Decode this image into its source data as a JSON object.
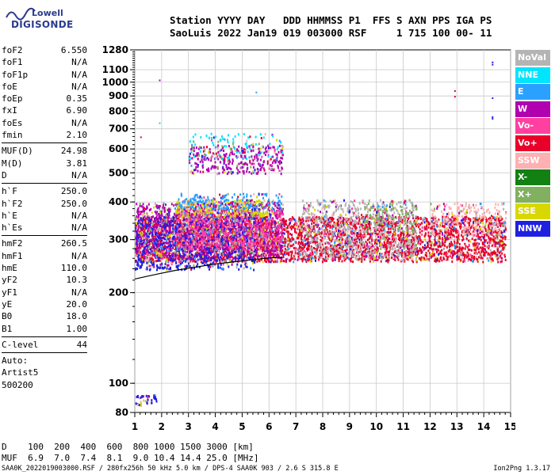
{
  "logo": {
    "org": "Lowell",
    "product": "DIGISONDE"
  },
  "header": {
    "line1": "Station YYYY DAY   DDD HHMMSS P1  FFS S AXN PPS IGA PS",
    "line2": "SaoLuis 2022 Jan19 019 003000 RSF     1 715 100 00- 11"
  },
  "params": {
    "group1": [
      {
        "label": "foF2",
        "value": "6.550"
      },
      {
        "label": "foF1",
        "value": "N/A"
      },
      {
        "label": "foF1p",
        "value": "N/A"
      },
      {
        "label": "foE",
        "value": "N/A"
      },
      {
        "label": "foEp",
        "value": "0.35"
      },
      {
        "label": "fxI",
        "value": "6.90"
      },
      {
        "label": "foEs",
        "value": "N/A"
      },
      {
        "label": "fmin",
        "value": "2.10"
      }
    ],
    "group2": [
      {
        "label": "MUF(D)",
        "value": "24.98"
      },
      {
        "label": "M(D)",
        "value": "3.81"
      },
      {
        "label": "D",
        "value": "N/A"
      }
    ],
    "group3": [
      {
        "label": "h`F",
        "value": "250.0"
      },
      {
        "label": "h`F2",
        "value": "250.0"
      },
      {
        "label": "h`E",
        "value": "N/A"
      },
      {
        "label": "h`Es",
        "value": "N/A"
      }
    ],
    "group4": [
      {
        "label": "hmF2",
        "value": "260.5"
      },
      {
        "label": "hmF1",
        "value": "N/A"
      },
      {
        "label": "hmE",
        "value": "110.0"
      },
      {
        "label": "yF2",
        "value": "10.3"
      },
      {
        "label": "yF1",
        "value": "N/A"
      },
      {
        "label": "yE",
        "value": "20.0"
      },
      {
        "label": "B0",
        "value": "18.0"
      },
      {
        "label": "B1",
        "value": "1.00"
      }
    ],
    "clevel": {
      "label": "C-level",
      "value": "44"
    },
    "auto": [
      "Auto:",
      "Artist5",
      "500200"
    ]
  },
  "legend": [
    {
      "label": "NoVal",
      "bg": "#b4b4b4",
      "fg": "#ffffff"
    },
    {
      "label": "NNE",
      "bg": "#00e5ff",
      "fg": "#ffffff"
    },
    {
      "label": "E",
      "bg": "#2aa0ff",
      "fg": "#ffffff"
    },
    {
      "label": "W",
      "bg": "#b000b0",
      "fg": "#ffffff"
    },
    {
      "label": "Vo-",
      "bg": "#ff40a0",
      "fg": "#ffffff"
    },
    {
      "label": "Vo+",
      "bg": "#e8002a",
      "fg": "#ffffff"
    },
    {
      "label": "SSW",
      "bg": "#ffb0b0",
      "fg": "#ffffff"
    },
    {
      "label": "X-",
      "bg": "#128012",
      "fg": "#ffffff"
    },
    {
      "label": "X+",
      "bg": "#80b060",
      "fg": "#ffffff"
    },
    {
      "label": "SSE",
      "bg": "#d8d800",
      "fg": "#ffffff"
    },
    {
      "label": "NNW",
      "bg": "#2020e0",
      "fg": "#ffffff"
    }
  ],
  "footer": {
    "d_row": "D    100  200  400  600  800 1000 1500 3000 [km]",
    "muf_row": "MUF  6.9  7.0  7.4  8.1  9.0 10.4 14.4 25.0 [MHz]",
    "file_info": "SAA0K_2022019003000.RSF / 280fx256h 50 kHz 5.0 km / DPS-4 SAA0K 903 / 2.6 S 315.8 E",
    "version": "Ion2Png 1.3.17"
  },
  "chart_data": {
    "type": "scatter",
    "title": "",
    "xlabel": "",
    "ylabel": "",
    "xlim": [
      1,
      15
    ],
    "ylim": [
      80,
      1280
    ],
    "y_scale": "log",
    "x_ticks": [
      "1",
      "2",
      "3",
      "4",
      "5",
      "6",
      "7",
      "8",
      "9",
      "10",
      "11",
      "12",
      "13",
      "14",
      "15"
    ],
    "y_ticks": [
      "80",
      "100",
      "200",
      "300",
      "400",
      "500",
      "600",
      "700",
      "800",
      "900",
      "1000",
      "1100",
      "1280"
    ],
    "grid": true,
    "legend_position": "right",
    "profile_curve": {
      "x": [
        1.0,
        1.5,
        2.0,
        2.5,
        3.0,
        3.5,
        4.0,
        4.5,
        5.0,
        5.5,
        6.0,
        6.5
      ],
      "y": [
        222,
        227,
        232,
        237,
        241,
        245,
        249,
        252,
        255,
        258,
        261,
        262
      ]
    },
    "echo_clusters": [
      {
        "name": "Vo+",
        "x_range": [
          1.0,
          14.8
        ],
        "y_range": [
          255,
          360
        ],
        "density": 0.9
      },
      {
        "name": "W",
        "x_range": [
          1.0,
          6.5
        ],
        "y_range": [
          260,
          400
        ],
        "density": 0.7
      },
      {
        "name": "NNW",
        "x_range": [
          1.0,
          5.5
        ],
        "y_range": [
          240,
          360
        ],
        "density": 0.5
      },
      {
        "name": "Vo-",
        "x_range": [
          2.5,
          6.5
        ],
        "y_range": [
          280,
          380
        ],
        "density": 0.6
      },
      {
        "name": "SSE",
        "x_range": [
          2.5,
          6.0
        ],
        "y_range": [
          360,
          410
        ],
        "density": 0.6
      },
      {
        "name": "E",
        "x_range": [
          2.5,
          6.5
        ],
        "y_range": [
          380,
          430
        ],
        "density": 0.4
      },
      {
        "name": "NoVal",
        "x_range": [
          7.2,
          11.5
        ],
        "y_range": [
          260,
          410
        ],
        "density": 0.4
      },
      {
        "name": "X+",
        "x_range": [
          9.5,
          11.5
        ],
        "y_range": [
          320,
          400
        ],
        "density": 0.3
      },
      {
        "name": "W",
        "x_range": [
          3.0,
          6.5
        ],
        "y_range": [
          500,
          620
        ],
        "density": 0.5
      },
      {
        "name": "NNE",
        "x_range": [
          3.0,
          6.5
        ],
        "y_range": [
          560,
          680
        ],
        "density": 0.15
      },
      {
        "name": "SSW",
        "x_range": [
          12.0,
          14.8
        ],
        "y_range": [
          310,
          400
        ],
        "density": 0.4
      },
      {
        "name": "NNW",
        "x_range": [
          1.0,
          1.8
        ],
        "y_range": [
          85,
          92
        ],
        "density": 0.6
      }
    ],
    "isolated_points": [
      {
        "name": "NNW",
        "x": 14.3,
        "y": 1150
      },
      {
        "name": "NNW",
        "x": 14.3,
        "y": 1170
      },
      {
        "name": "NNW",
        "x": 14.3,
        "y": 890
      },
      {
        "name": "NNW",
        "x": 14.3,
        "y": 760
      },
      {
        "name": "NNW",
        "x": 14.3,
        "y": 770
      },
      {
        "name": "Vo+",
        "x": 12.9,
        "y": 900
      },
      {
        "name": "Vo+",
        "x": 12.9,
        "y": 940
      },
      {
        "name": "W",
        "x": 1.9,
        "y": 1020
      },
      {
        "name": "E",
        "x": 5.5,
        "y": 930
      },
      {
        "name": "NNE",
        "x": 1.9,
        "y": 735
      },
      {
        "name": "Vo+",
        "x": 1.2,
        "y": 660
      }
    ]
  }
}
